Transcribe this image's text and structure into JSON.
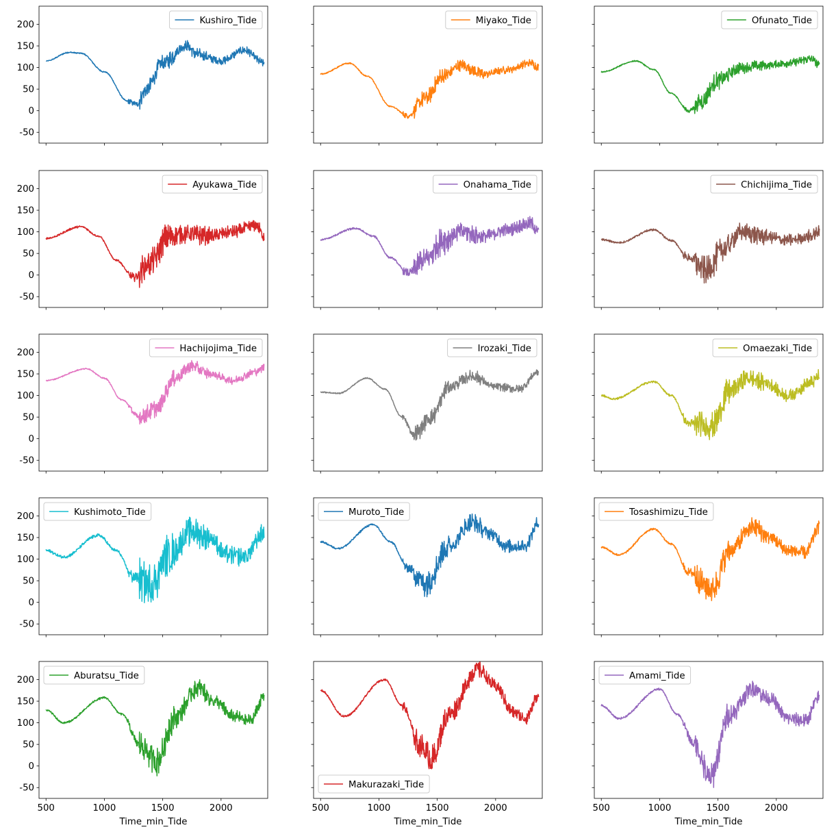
{
  "colors": {
    "c0": "#1f77b4",
    "c1": "#ff7f0e",
    "c2": "#2ca02c",
    "c3": "#d62728",
    "c4": "#9467bd",
    "c5": "#8c564b",
    "c6": "#e377c2",
    "c7": "#7f7f7f",
    "c8": "#bcbd22",
    "c9": "#17becf"
  },
  "chart_data": {
    "type": "line",
    "layout": "5x3 grid of subplots, shared x and y axes",
    "xlabel": "Time_min_Tide",
    "xlim": [
      440,
      2400
    ],
    "ylim": [
      -75,
      242
    ],
    "xticks": [
      500,
      1000,
      1500,
      2000
    ],
    "yticks": [
      -50,
      0,
      50,
      100,
      150,
      200
    ],
    "grid": false,
    "panels": [
      {
        "name": "Kushiro_Tide",
        "color": "#1f77b4",
        "legend": "top-right",
        "noise": "medium",
        "control_points": [
          [
            500,
            115
          ],
          [
            700,
            135
          ],
          [
            800,
            133
          ],
          [
            1000,
            90
          ],
          [
            1200,
            22
          ],
          [
            1280,
            15
          ],
          [
            1350,
            45
          ],
          [
            1500,
            110
          ],
          [
            1700,
            150
          ],
          [
            1800,
            130
          ],
          [
            2000,
            115
          ],
          [
            2200,
            140
          ],
          [
            2370,
            110
          ]
        ]
      },
      {
        "name": "Miyako_Tide",
        "color": "#ff7f0e",
        "legend": "top-right",
        "noise": "medium",
        "control_points": [
          [
            500,
            85
          ],
          [
            750,
            110
          ],
          [
            900,
            80
          ],
          [
            1100,
            10
          ],
          [
            1250,
            -12
          ],
          [
            1400,
            30
          ],
          [
            1550,
            80
          ],
          [
            1700,
            105
          ],
          [
            1900,
            85
          ],
          [
            2100,
            95
          ],
          [
            2300,
            110
          ],
          [
            2370,
            100
          ]
        ]
      },
      {
        "name": "Ofunato_Tide",
        "color": "#2ca02c",
        "legend": "top-right",
        "noise": "medium",
        "control_points": [
          [
            500,
            90
          ],
          [
            800,
            115
          ],
          [
            950,
            95
          ],
          [
            1100,
            40
          ],
          [
            1250,
            0
          ],
          [
            1350,
            20
          ],
          [
            1500,
            70
          ],
          [
            1700,
            100
          ],
          [
            1900,
            105
          ],
          [
            2100,
            110
          ],
          [
            2300,
            120
          ],
          [
            2370,
            105
          ]
        ]
      },
      {
        "name": "Ayukawa_Tide",
        "color": "#d62728",
        "legend": "top-right",
        "noise": "large",
        "control_points": [
          [
            500,
            85
          ],
          [
            800,
            112
          ],
          [
            950,
            90
          ],
          [
            1100,
            35
          ],
          [
            1250,
            -5
          ],
          [
            1400,
            30
          ],
          [
            1550,
            90
          ],
          [
            1700,
            95
          ],
          [
            1900,
            90
          ],
          [
            2100,
            100
          ],
          [
            2300,
            115
          ],
          [
            2370,
            90
          ]
        ]
      },
      {
        "name": "Onahama_Tide",
        "color": "#9467bd",
        "legend": "top-right",
        "noise": "large",
        "control_points": [
          [
            500,
            82
          ],
          [
            800,
            108
          ],
          [
            950,
            90
          ],
          [
            1100,
            40
          ],
          [
            1250,
            5
          ],
          [
            1400,
            35
          ],
          [
            1550,
            80
          ],
          [
            1700,
            100
          ],
          [
            1900,
            90
          ],
          [
            2100,
            105
          ],
          [
            2300,
            120
          ],
          [
            2370,
            100
          ]
        ]
      },
      {
        "name": "Chichijima_Tide",
        "color": "#8c564b",
        "legend": "top-right",
        "noise": "large",
        "control_points": [
          [
            500,
            82
          ],
          [
            650,
            75
          ],
          [
            950,
            105
          ],
          [
            1100,
            80
          ],
          [
            1250,
            40
          ],
          [
            1400,
            10
          ],
          [
            1550,
            60
          ],
          [
            1700,
            100
          ],
          [
            1900,
            90
          ],
          [
            2100,
            80
          ],
          [
            2300,
            90
          ],
          [
            2370,
            100
          ]
        ]
      },
      {
        "name": "Hachijojima_Tide",
        "color": "#e377c2",
        "legend": "top-right",
        "noise": "medium",
        "control_points": [
          [
            500,
            135
          ],
          [
            850,
            162
          ],
          [
            1000,
            140
          ],
          [
            1150,
            90
          ],
          [
            1300,
            50
          ],
          [
            1450,
            70
          ],
          [
            1600,
            140
          ],
          [
            1750,
            168
          ],
          [
            1900,
            150
          ],
          [
            2100,
            135
          ],
          [
            2300,
            155
          ],
          [
            2370,
            165
          ]
        ]
      },
      {
        "name": "Irozaki_Tide",
        "color": "#7f7f7f",
        "legend": "top-right",
        "noise": "medium",
        "control_points": [
          [
            500,
            108
          ],
          [
            650,
            105
          ],
          [
            900,
            140
          ],
          [
            1050,
            115
          ],
          [
            1200,
            50
          ],
          [
            1300,
            10
          ],
          [
            1450,
            50
          ],
          [
            1600,
            120
          ],
          [
            1800,
            145
          ],
          [
            2000,
            120
          ],
          [
            2200,
            115
          ],
          [
            2370,
            155
          ]
        ]
      },
      {
        "name": "Omaezaki_Tide",
        "color": "#bcbd22",
        "legend": "top-right",
        "noise": "large",
        "control_points": [
          [
            500,
            100
          ],
          [
            600,
            92
          ],
          [
            950,
            132
          ],
          [
            1100,
            100
          ],
          [
            1250,
            35
          ],
          [
            1450,
            30
          ],
          [
            1600,
            110
          ],
          [
            1750,
            140
          ],
          [
            1900,
            130
          ],
          [
            2100,
            100
          ],
          [
            2300,
            130
          ],
          [
            2370,
            145
          ]
        ]
      },
      {
        "name": "Kushimoto_Tide",
        "color": "#17becf",
        "legend": "top-left",
        "noise": "xlarge",
        "control_points": [
          [
            500,
            120
          ],
          [
            650,
            105
          ],
          [
            950,
            155
          ],
          [
            1100,
            120
          ],
          [
            1250,
            60
          ],
          [
            1400,
            40
          ],
          [
            1550,
            110
          ],
          [
            1750,
            165
          ],
          [
            1900,
            150
          ],
          [
            2050,
            110
          ],
          [
            2200,
            105
          ],
          [
            2370,
            160
          ]
        ]
      },
      {
        "name": "Muroto_Tide",
        "color": "#1f77b4",
        "legend": "top-left",
        "noise": "large",
        "control_points": [
          [
            500,
            140
          ],
          [
            650,
            125
          ],
          [
            950,
            180
          ],
          [
            1100,
            140
          ],
          [
            1250,
            80
          ],
          [
            1400,
            45
          ],
          [
            1600,
            130
          ],
          [
            1800,
            185
          ],
          [
            1950,
            160
          ],
          [
            2100,
            130
          ],
          [
            2250,
            130
          ],
          [
            2370,
            185
          ]
        ]
      },
      {
        "name": "Tosashimizu_Tide",
        "color": "#ff7f0e",
        "legend": "top-left",
        "noise": "large",
        "control_points": [
          [
            500,
            128
          ],
          [
            650,
            110
          ],
          [
            950,
            170
          ],
          [
            1100,
            135
          ],
          [
            1250,
            70
          ],
          [
            1450,
            30
          ],
          [
            1600,
            120
          ],
          [
            1800,
            175
          ],
          [
            1950,
            150
          ],
          [
            2100,
            120
          ],
          [
            2250,
            115
          ],
          [
            2370,
            175
          ]
        ]
      },
      {
        "name": "Aburatsu_Tide",
        "color": "#2ca02c",
        "legend": "top-left",
        "noise": "large",
        "control_points": [
          [
            500,
            130
          ],
          [
            650,
            100
          ],
          [
            1000,
            158
          ],
          [
            1150,
            120
          ],
          [
            1300,
            50
          ],
          [
            1450,
            10
          ],
          [
            1600,
            110
          ],
          [
            1800,
            180
          ],
          [
            1950,
            150
          ],
          [
            2100,
            115
          ],
          [
            2250,
            105
          ],
          [
            2370,
            160
          ]
        ]
      },
      {
        "name": "Makurazaki_Tide",
        "color": "#d62728",
        "legend": "bottom-left",
        "noise": "large",
        "control_points": [
          [
            500,
            175
          ],
          [
            700,
            115
          ],
          [
            1050,
            200
          ],
          [
            1200,
            140
          ],
          [
            1350,
            50
          ],
          [
            1450,
            15
          ],
          [
            1600,
            120
          ],
          [
            1850,
            225
          ],
          [
            2000,
            185
          ],
          [
            2150,
            125
          ],
          [
            2250,
            110
          ],
          [
            2370,
            160
          ]
        ]
      },
      {
        "name": "Amami_Tide",
        "color": "#9467bd",
        "legend": "top-left",
        "noise": "large",
        "control_points": [
          [
            500,
            140
          ],
          [
            650,
            110
          ],
          [
            1000,
            178
          ],
          [
            1150,
            120
          ],
          [
            1300,
            50
          ],
          [
            1430,
            -30
          ],
          [
            1600,
            120
          ],
          [
            1800,
            180
          ],
          [
            1950,
            155
          ],
          [
            2100,
            110
          ],
          [
            2250,
            105
          ],
          [
            2370,
            160
          ]
        ]
      }
    ]
  }
}
